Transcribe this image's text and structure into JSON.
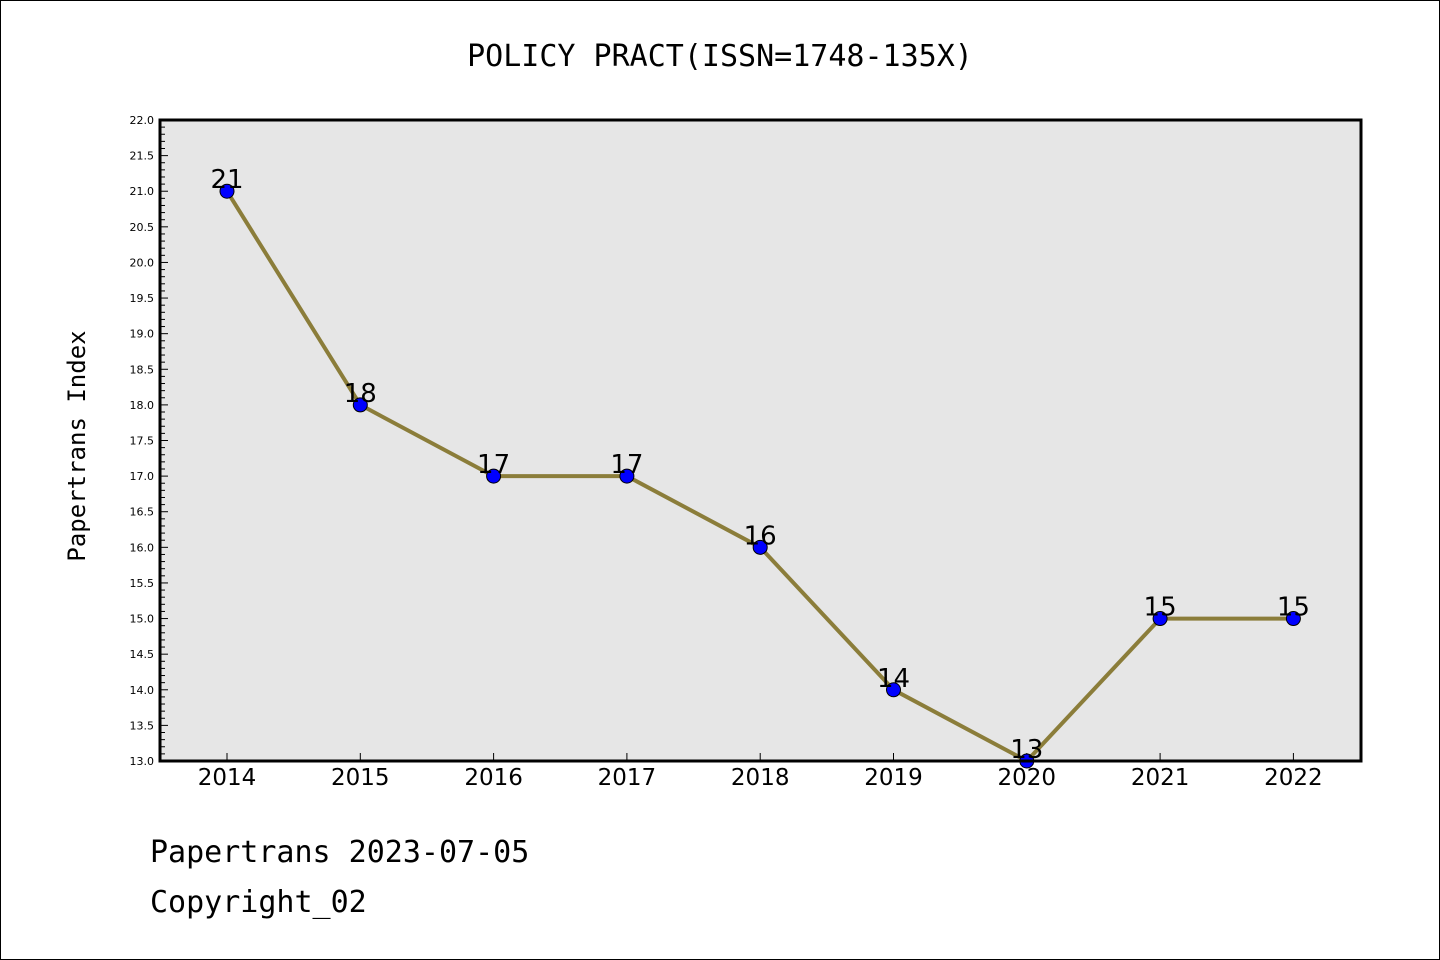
{
  "chart_data": {
    "type": "line",
    "title": "POLICY PRACT(ISSN=1748-135X)",
    "xlabel": "",
    "ylabel": "Papertrans Index",
    "x": [
      "2014",
      "2015",
      "2016",
      "2017",
      "2018",
      "2019",
      "2020",
      "2021",
      "2022"
    ],
    "series": [
      {
        "values": [
          21,
          18,
          17,
          17,
          16,
          14,
          13,
          15,
          15
        ]
      }
    ],
    "data_labels": [
      "21",
      "18",
      "17",
      "17",
      "16",
      "14",
      "13",
      "15",
      "15"
    ],
    "ylim": [
      13.0,
      22.0
    ],
    "y_tick_labels": [
      "13.0",
      "13.5",
      "14.0",
      "14.5",
      "15.0",
      "15.5",
      "16.0",
      "16.5",
      "17.0",
      "17.5",
      "18.0",
      "18.5",
      "19.0",
      "19.5",
      "20.0",
      "20.5",
      "21.0",
      "21.5",
      "22.0"
    ],
    "grid": false,
    "legend": "none",
    "colors": {
      "line": "#8b7d3a",
      "marker": "#0000ff",
      "plot_background": "#e6e6e6"
    }
  },
  "footer": {
    "line1": "Papertrans 2023-07-05",
    "line2": "Copyright_02"
  }
}
